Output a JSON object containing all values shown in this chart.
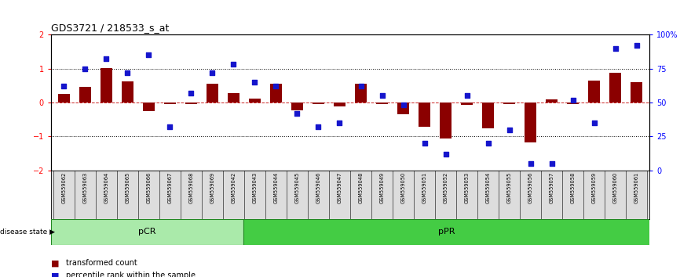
{
  "title": "GDS3721 / 218533_s_at",
  "samples": [
    "GSM559062",
    "GSM559063",
    "GSM559064",
    "GSM559065",
    "GSM559066",
    "GSM559067",
    "GSM559068",
    "GSM559069",
    "GSM559042",
    "GSM559043",
    "GSM559044",
    "GSM559045",
    "GSM559046",
    "GSM559047",
    "GSM559048",
    "GSM559049",
    "GSM559050",
    "GSM559051",
    "GSM559052",
    "GSM559053",
    "GSM559054",
    "GSM559055",
    "GSM559056",
    "GSM559057",
    "GSM559058",
    "GSM559059",
    "GSM559060",
    "GSM559061"
  ],
  "transformed_count": [
    0.25,
    0.45,
    1.02,
    0.62,
    -0.25,
    -0.05,
    -0.05,
    0.55,
    0.27,
    0.12,
    0.55,
    -0.22,
    -0.05,
    -0.12,
    0.55,
    -0.05,
    -0.35,
    -0.72,
    -1.05,
    -0.08,
    -0.75,
    -0.05,
    -1.18,
    0.1,
    -0.05,
    0.65,
    0.88,
    0.6
  ],
  "percentile_rank": [
    62,
    75,
    82,
    72,
    85,
    32,
    57,
    72,
    78,
    65,
    62,
    42,
    32,
    35,
    62,
    55,
    48,
    20,
    12,
    55,
    20,
    30,
    5,
    5,
    52,
    35,
    90,
    92
  ],
  "n_pCR": 9,
  "bar_color": "#8B0000",
  "dot_color": "#1515CC",
  "pCR_light_color": "#AAEAAA",
  "pPR_dark_color": "#44CC44",
  "ylim_left": [
    -2,
    2
  ],
  "ylim_right": [
    0,
    100
  ],
  "yticks_left": [
    -2,
    -1,
    0,
    1,
    2
  ],
  "yticks_right": [
    0,
    25,
    50,
    75,
    100
  ],
  "bg_color": "#DDDDDD",
  "bar_width": 0.55
}
